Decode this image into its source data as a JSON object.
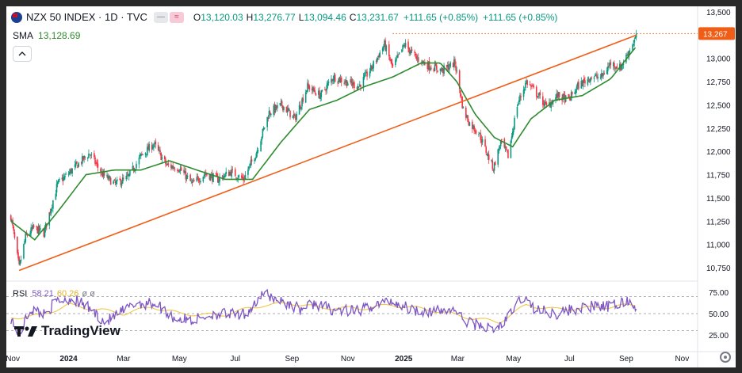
{
  "header": {
    "symbol_title": "NZX 50 INDEX · 1D · TVC",
    "ohlc": [
      {
        "key": "O",
        "value": "13,120.03"
      },
      {
        "key": "H",
        "value": "13,276.77"
      },
      {
        "key": "L",
        "value": "13,094.46"
      },
      {
        "key": "C",
        "value": "13,231.67"
      }
    ],
    "change_text": "+111.65 (+0.85%)",
    "change_text_2": "+111.65 (+0.85%)"
  },
  "sma": {
    "label": "SMA",
    "value": "13,128.69"
  },
  "rsi": {
    "label": "RSI",
    "value": "58.21",
    "ma_value": "60.26",
    "extra_1": "ø",
    "extra_2": "ø"
  },
  "logo": {
    "text": "TradingView"
  },
  "colors": {
    "up": "#089981",
    "down": "#f23645",
    "sma": "#2e8b2e",
    "trendline": "#f05d16",
    "rsi": "#7e57c2",
    "rsi_ma": "#f2c744",
    "price_label_bg": "#f05d16",
    "background": "#ffffff"
  },
  "chart_data": [
    {
      "type": "candlestick",
      "title": "NZX 50 INDEX · 1D · TVC",
      "x_axis_labels": [
        "Nov",
        "2024",
        "Mar",
        "May",
        "Jul",
        "Sep",
        "Nov",
        "2025",
        "Mar",
        "May",
        "Jul",
        "Sep",
        "Nov"
      ],
      "x_axis_dates": [
        "2023-11-01",
        "2024-01-01",
        "2024-03-01",
        "2024-05-01",
        "2024-07-01",
        "2024-09-01",
        "2024-11-01",
        "2025-01-01",
        "2025-03-01",
        "2025-05-01",
        "2025-07-01",
        "2025-09-01",
        "2025-11-01"
      ],
      "y_ticks": [
        10750,
        11000,
        11250,
        11500,
        11750,
        12000,
        12250,
        12500,
        12750,
        13000,
        13250,
        13500
      ],
      "y_tick_labels": [
        "10,750",
        "11,000",
        "11,250",
        "11,500",
        "11,750",
        "12,000",
        "12,250",
        "12,500",
        "12,750",
        "13,000",
        "13,250",
        "13,500"
      ],
      "ylim": [
        10700,
        13550
      ],
      "last_price_label": "13,267",
      "last_price": 13267,
      "close_anchors": [
        [
          "2023-10-30",
          11300
        ],
        [
          "2023-11-08",
          10750
        ],
        [
          "2023-11-15",
          11080
        ],
        [
          "2023-11-24",
          11180
        ],
        [
          "2023-12-05",
          11120
        ],
        [
          "2023-12-20",
          11650
        ],
        [
          "2024-01-10",
          11850
        ],
        [
          "2024-01-24",
          11980
        ],
        [
          "2024-02-07",
          11750
        ],
        [
          "2024-02-21",
          11650
        ],
        [
          "2024-03-06",
          11720
        ],
        [
          "2024-03-20",
          11950
        ],
        [
          "2024-04-03",
          12080
        ],
        [
          "2024-04-17",
          11850
        ],
        [
          "2024-05-01",
          11820
        ],
        [
          "2024-05-15",
          11650
        ],
        [
          "2024-05-29",
          11760
        ],
        [
          "2024-06-12",
          11700
        ],
        [
          "2024-06-26",
          11780
        ],
        [
          "2024-07-10",
          11700
        ],
        [
          "2024-07-24",
          11990
        ],
        [
          "2024-08-07",
          12420
        ],
        [
          "2024-08-21",
          12500
        ],
        [
          "2024-09-04",
          12350
        ],
        [
          "2024-09-18",
          12700
        ],
        [
          "2024-10-02",
          12600
        ],
        [
          "2024-10-16",
          12800
        ],
        [
          "2024-10-30",
          12750
        ],
        [
          "2024-11-13",
          12700
        ],
        [
          "2024-11-27",
          12900
        ],
        [
          "2024-12-11",
          13150
        ],
        [
          "2024-12-20",
          12900
        ],
        [
          "2025-01-02",
          13150
        ],
        [
          "2025-01-15",
          13000
        ],
        [
          "2025-01-29",
          12920
        ],
        [
          "2025-02-12",
          12870
        ],
        [
          "2025-02-26",
          12950
        ],
        [
          "2025-03-07",
          12450
        ],
        [
          "2025-03-14",
          12300
        ],
        [
          "2025-03-24",
          12200
        ],
        [
          "2025-04-01",
          12000
        ],
        [
          "2025-04-09",
          11820
        ],
        [
          "2025-04-17",
          12100
        ],
        [
          "2025-04-25",
          11950
        ],
        [
          "2025-05-05",
          12500
        ],
        [
          "2025-05-15",
          12750
        ],
        [
          "2025-05-28",
          12600
        ],
        [
          "2025-06-06",
          12480
        ],
        [
          "2025-06-18",
          12600
        ],
        [
          "2025-06-30",
          12550
        ],
        [
          "2025-07-10",
          12700
        ],
        [
          "2025-07-24",
          12800
        ],
        [
          "2025-08-05",
          12800
        ],
        [
          "2025-08-15",
          12950
        ],
        [
          "2025-08-26",
          12900
        ],
        [
          "2025-09-05",
          13100
        ],
        [
          "2025-09-12",
          13231.67
        ]
      ],
      "sma_anchors": [
        [
          "2023-10-30",
          11250
        ],
        [
          "2023-11-25",
          11050
        ],
        [
          "2023-12-20",
          11350
        ],
        [
          "2024-01-20",
          11750
        ],
        [
          "2024-02-20",
          11800
        ],
        [
          "2024-03-20",
          11800
        ],
        [
          "2024-04-20",
          11900
        ],
        [
          "2024-05-20",
          11800
        ],
        [
          "2024-06-20",
          11700
        ],
        [
          "2024-07-20",
          11700
        ],
        [
          "2024-08-20",
          12100
        ],
        [
          "2024-09-20",
          12450
        ],
        [
          "2024-10-20",
          12550
        ],
        [
          "2024-11-20",
          12700
        ],
        [
          "2024-12-20",
          12800
        ],
        [
          "2025-01-20",
          12950
        ],
        [
          "2025-02-10",
          12950
        ],
        [
          "2025-02-28",
          12750
        ],
        [
          "2025-03-20",
          12400
        ],
        [
          "2025-04-10",
          12150
        ],
        [
          "2025-04-30",
          12050
        ],
        [
          "2025-05-20",
          12350
        ],
        [
          "2025-06-15",
          12550
        ],
        [
          "2025-07-15",
          12600
        ],
        [
          "2025-08-15",
          12780
        ],
        [
          "2025-09-12",
          13128.69
        ]
      ],
      "trendline": {
        "start": [
          "2023-11-08",
          10720
        ],
        "end": [
          "2025-09-12",
          13250
        ]
      },
      "horizontal_line": {
        "from_date": "2024-12-20",
        "value": 13267
      }
    },
    {
      "type": "line",
      "title": "RSI",
      "y_ticks": [
        25,
        50,
        75
      ],
      "y_tick_labels": [
        "25.00",
        "50.00",
        "75.00"
      ],
      "ylim": [
        20,
        80
      ],
      "band_levels": [
        70,
        50,
        30
      ],
      "series": [
        {
          "name": "RSI",
          "anchors": [
            [
              "2023-10-30",
              45
            ],
            [
              "2023-11-08",
              25
            ],
            [
              "2023-11-20",
              55
            ],
            [
              "2023-12-05",
              50
            ],
            [
              "2023-12-20",
              65
            ],
            [
              "2024-01-05",
              68
            ],
            [
              "2024-01-25",
              55
            ],
            [
              "2024-02-10",
              40
            ],
            [
              "2024-02-25",
              50
            ],
            [
              "2024-03-15",
              62
            ],
            [
              "2024-04-05",
              62
            ],
            [
              "2024-04-25",
              45
            ],
            [
              "2024-05-15",
              42
            ],
            [
              "2024-06-10",
              50
            ],
            [
              "2024-07-10",
              48
            ],
            [
              "2024-08-02",
              73
            ],
            [
              "2024-08-20",
              65
            ],
            [
              "2024-09-10",
              55
            ],
            [
              "2024-09-25",
              62
            ],
            [
              "2024-10-15",
              55
            ],
            [
              "2024-11-10",
              52
            ],
            [
              "2024-11-30",
              60
            ],
            [
              "2024-12-18",
              65
            ],
            [
              "2025-01-10",
              55
            ],
            [
              "2025-02-05",
              52
            ],
            [
              "2025-02-25",
              55
            ],
            [
              "2025-03-10",
              40
            ],
            [
              "2025-03-30",
              35
            ],
            [
              "2025-04-10",
              30
            ],
            [
              "2025-04-25",
              45
            ],
            [
              "2025-05-10",
              70
            ],
            [
              "2025-05-25",
              55
            ],
            [
              "2025-06-15",
              50
            ],
            [
              "2025-07-05",
              55
            ],
            [
              "2025-07-25",
              58
            ],
            [
              "2025-08-15",
              58
            ],
            [
              "2025-09-01",
              65
            ],
            [
              "2025-09-12",
              58.21
            ]
          ]
        },
        {
          "name": "RSI MA",
          "anchors": [
            [
              "2023-10-30",
              45
            ],
            [
              "2023-12-01",
              48
            ],
            [
              "2024-01-01",
              60
            ],
            [
              "2024-02-01",
              55
            ],
            [
              "2024-03-01",
              50
            ],
            [
              "2024-04-01",
              58
            ],
            [
              "2024-05-01",
              50
            ],
            [
              "2024-06-15",
              48
            ],
            [
              "2024-08-01",
              60
            ],
            [
              "2024-09-01",
              62
            ],
            [
              "2024-10-01",
              57
            ],
            [
              "2024-11-15",
              56
            ],
            [
              "2024-12-20",
              60
            ],
            [
              "2025-02-01",
              54
            ],
            [
              "2025-03-15",
              45
            ],
            [
              "2025-04-15",
              40
            ],
            [
              "2025-05-15",
              60
            ],
            [
              "2025-06-15",
              55
            ],
            [
              "2025-08-01",
              57
            ],
            [
              "2025-09-12",
              60.26
            ]
          ]
        }
      ]
    }
  ]
}
